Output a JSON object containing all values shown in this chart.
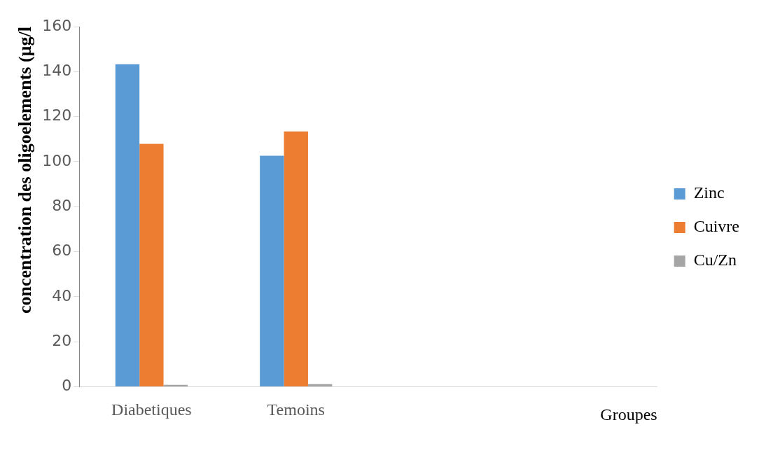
{
  "chart_data": {
    "type": "bar",
    "xlabel": "Groupes",
    "ylabel": "concentration des oligoelements (µg/l",
    "categories": [
      "Diabetiques",
      "Temoins",
      null,
      null
    ],
    "series": [
      {
        "name": "Zinc",
        "color": "#5b9bd5",
        "values": [
          143.3,
          102.6,
          null,
          null
        ]
      },
      {
        "name": "Cuivre",
        "color": "#ed7d31",
        "values": [
          107.9,
          113.4,
          null,
          null
        ]
      },
      {
        "name": "Cu/Zn",
        "color": "#a5a5a5",
        "values": [
          0.8,
          1.1,
          null,
          null
        ]
      }
    ],
    "ylim": [
      0,
      160
    ],
    "yticks": [
      0,
      20,
      40,
      60,
      80,
      100,
      120,
      140,
      160
    ],
    "grid": false,
    "legend": "right"
  }
}
